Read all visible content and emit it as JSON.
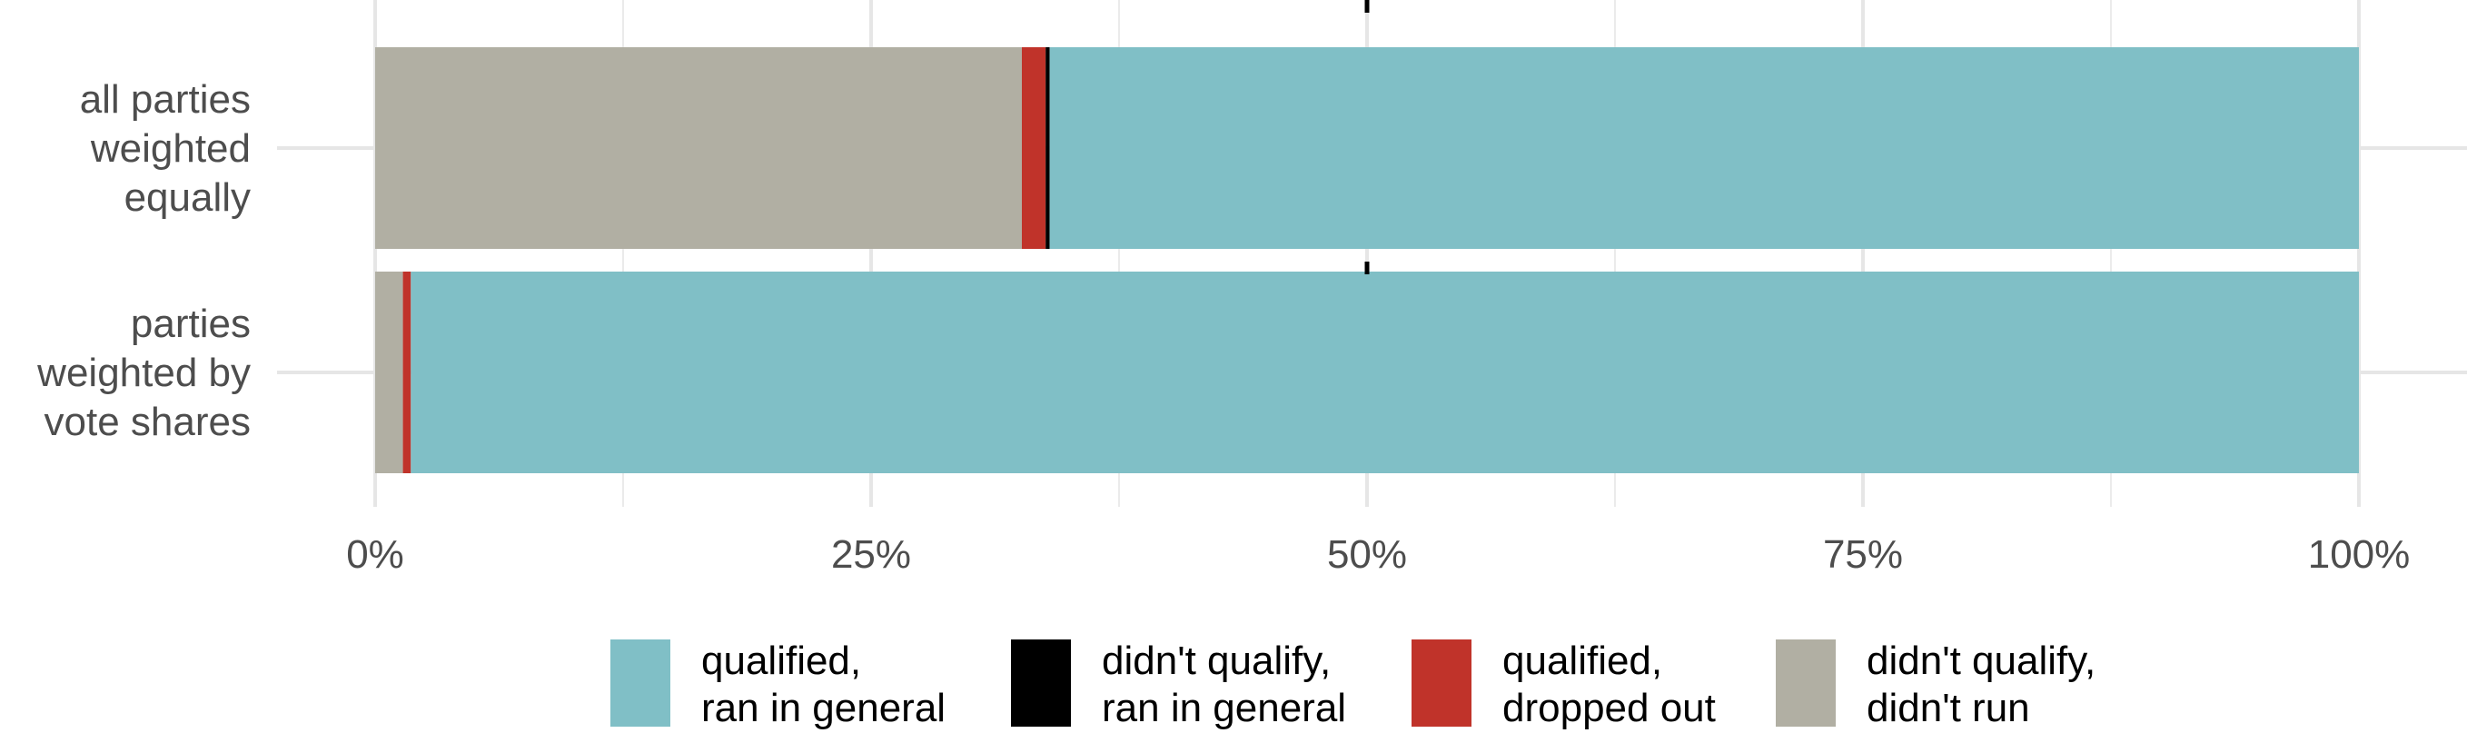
{
  "chart_data": {
    "type": "bar",
    "orientation": "horizontal",
    "stacked": true,
    "normalized": true,
    "title": "",
    "xlabel": "",
    "ylabel": "",
    "xlim": [
      0,
      100
    ],
    "xticks": [
      0,
      25,
      50,
      75,
      100
    ],
    "xtick_labels": [
      "0%",
      "25%",
      "50%",
      "75%",
      "100%"
    ],
    "reference_line": 50,
    "grid": true,
    "legend_position": "bottom",
    "categories": [
      {
        "lines": [
          "all parties",
          "weighted",
          "equally"
        ]
      },
      {
        "lines": [
          "parties",
          "weighted by",
          "vote shares"
        ]
      }
    ],
    "series": [
      {
        "name": "didn't qualify, didn't run",
        "label_lines": [
          "didn't qualify,",
          "didn't run"
        ],
        "color": "#b1afa3",
        "values": [
          32.6,
          1.4
        ]
      },
      {
        "name": "qualified, dropped out",
        "label_lines": [
          "qualified,",
          "dropped out"
        ],
        "color": "#c0332a",
        "values": [
          1.2,
          0.4
        ]
      },
      {
        "name": "didn't qualify, ran in general",
        "label_lines": [
          "didn't qualify,",
          "ran in general"
        ],
        "color": "#000000",
        "values": [
          0.2,
          0.0
        ]
      },
      {
        "name": "qualified, ran in general",
        "label_lines": [
          "qualified,",
          "ran in general"
        ],
        "color": "#80bfc6",
        "values": [
          66.0,
          98.2
        ]
      }
    ],
    "legend_order": [
      3,
      2,
      1,
      0
    ]
  }
}
